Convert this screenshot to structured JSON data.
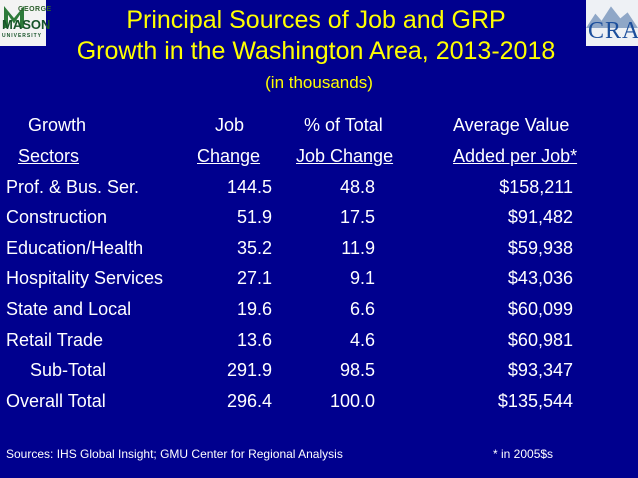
{
  "logos": {
    "gmu": {
      "line1": "GEORGE",
      "line2": "MASON",
      "line3": "UNIVERSITY"
    },
    "cra": {
      "text": "CRA"
    }
  },
  "title": {
    "line1": "Principal Sources of Job and GRP",
    "line2": "Growth in the Washington Area, 2013-2018",
    "subtitle": "(in thousands)"
  },
  "table": {
    "header_row1": [
      "Growth",
      "Job",
      "% of Total",
      "Average Value"
    ],
    "header_row2": [
      "Sectors",
      "Change",
      "Job Change",
      "Added per Job*"
    ],
    "rows": [
      {
        "sector": "Prof. & Bus. Ser.",
        "job_change": "144.5",
        "pct": "48.8",
        "value": "$158,211"
      },
      {
        "sector": "Construction",
        "job_change": "51.9",
        "pct": "17.5",
        "value": "$91,482"
      },
      {
        "sector": "Education/Health",
        "job_change": "35.2",
        "pct": "11.9",
        "value": "$59,938"
      },
      {
        "sector": "Hospitality Services",
        "job_change": "27.1",
        "pct": "9.1",
        "value": "$43,036"
      },
      {
        "sector": "State and Local",
        "job_change": "19.6",
        "pct": "6.6",
        "value": "$60,099"
      },
      {
        "sector": "Retail Trade",
        "job_change": "13.6",
        "pct": "4.6",
        "value": "$60,981"
      },
      {
        "sector": "Sub-Total",
        "job_change": "291.9",
        "pct": "98.5",
        "value": "$93,347"
      },
      {
        "sector": "Overall Total",
        "job_change": "296.4",
        "pct": "100.0",
        "value": "$135,544"
      }
    ]
  },
  "footer": {
    "sources": "Sources: IHS Global Insight; GMU Center for Regional Analysis",
    "note": "* in 2005$s"
  },
  "colors": {
    "background": "#00008e",
    "title": "#ffff00",
    "text": "#ffffff"
  }
}
